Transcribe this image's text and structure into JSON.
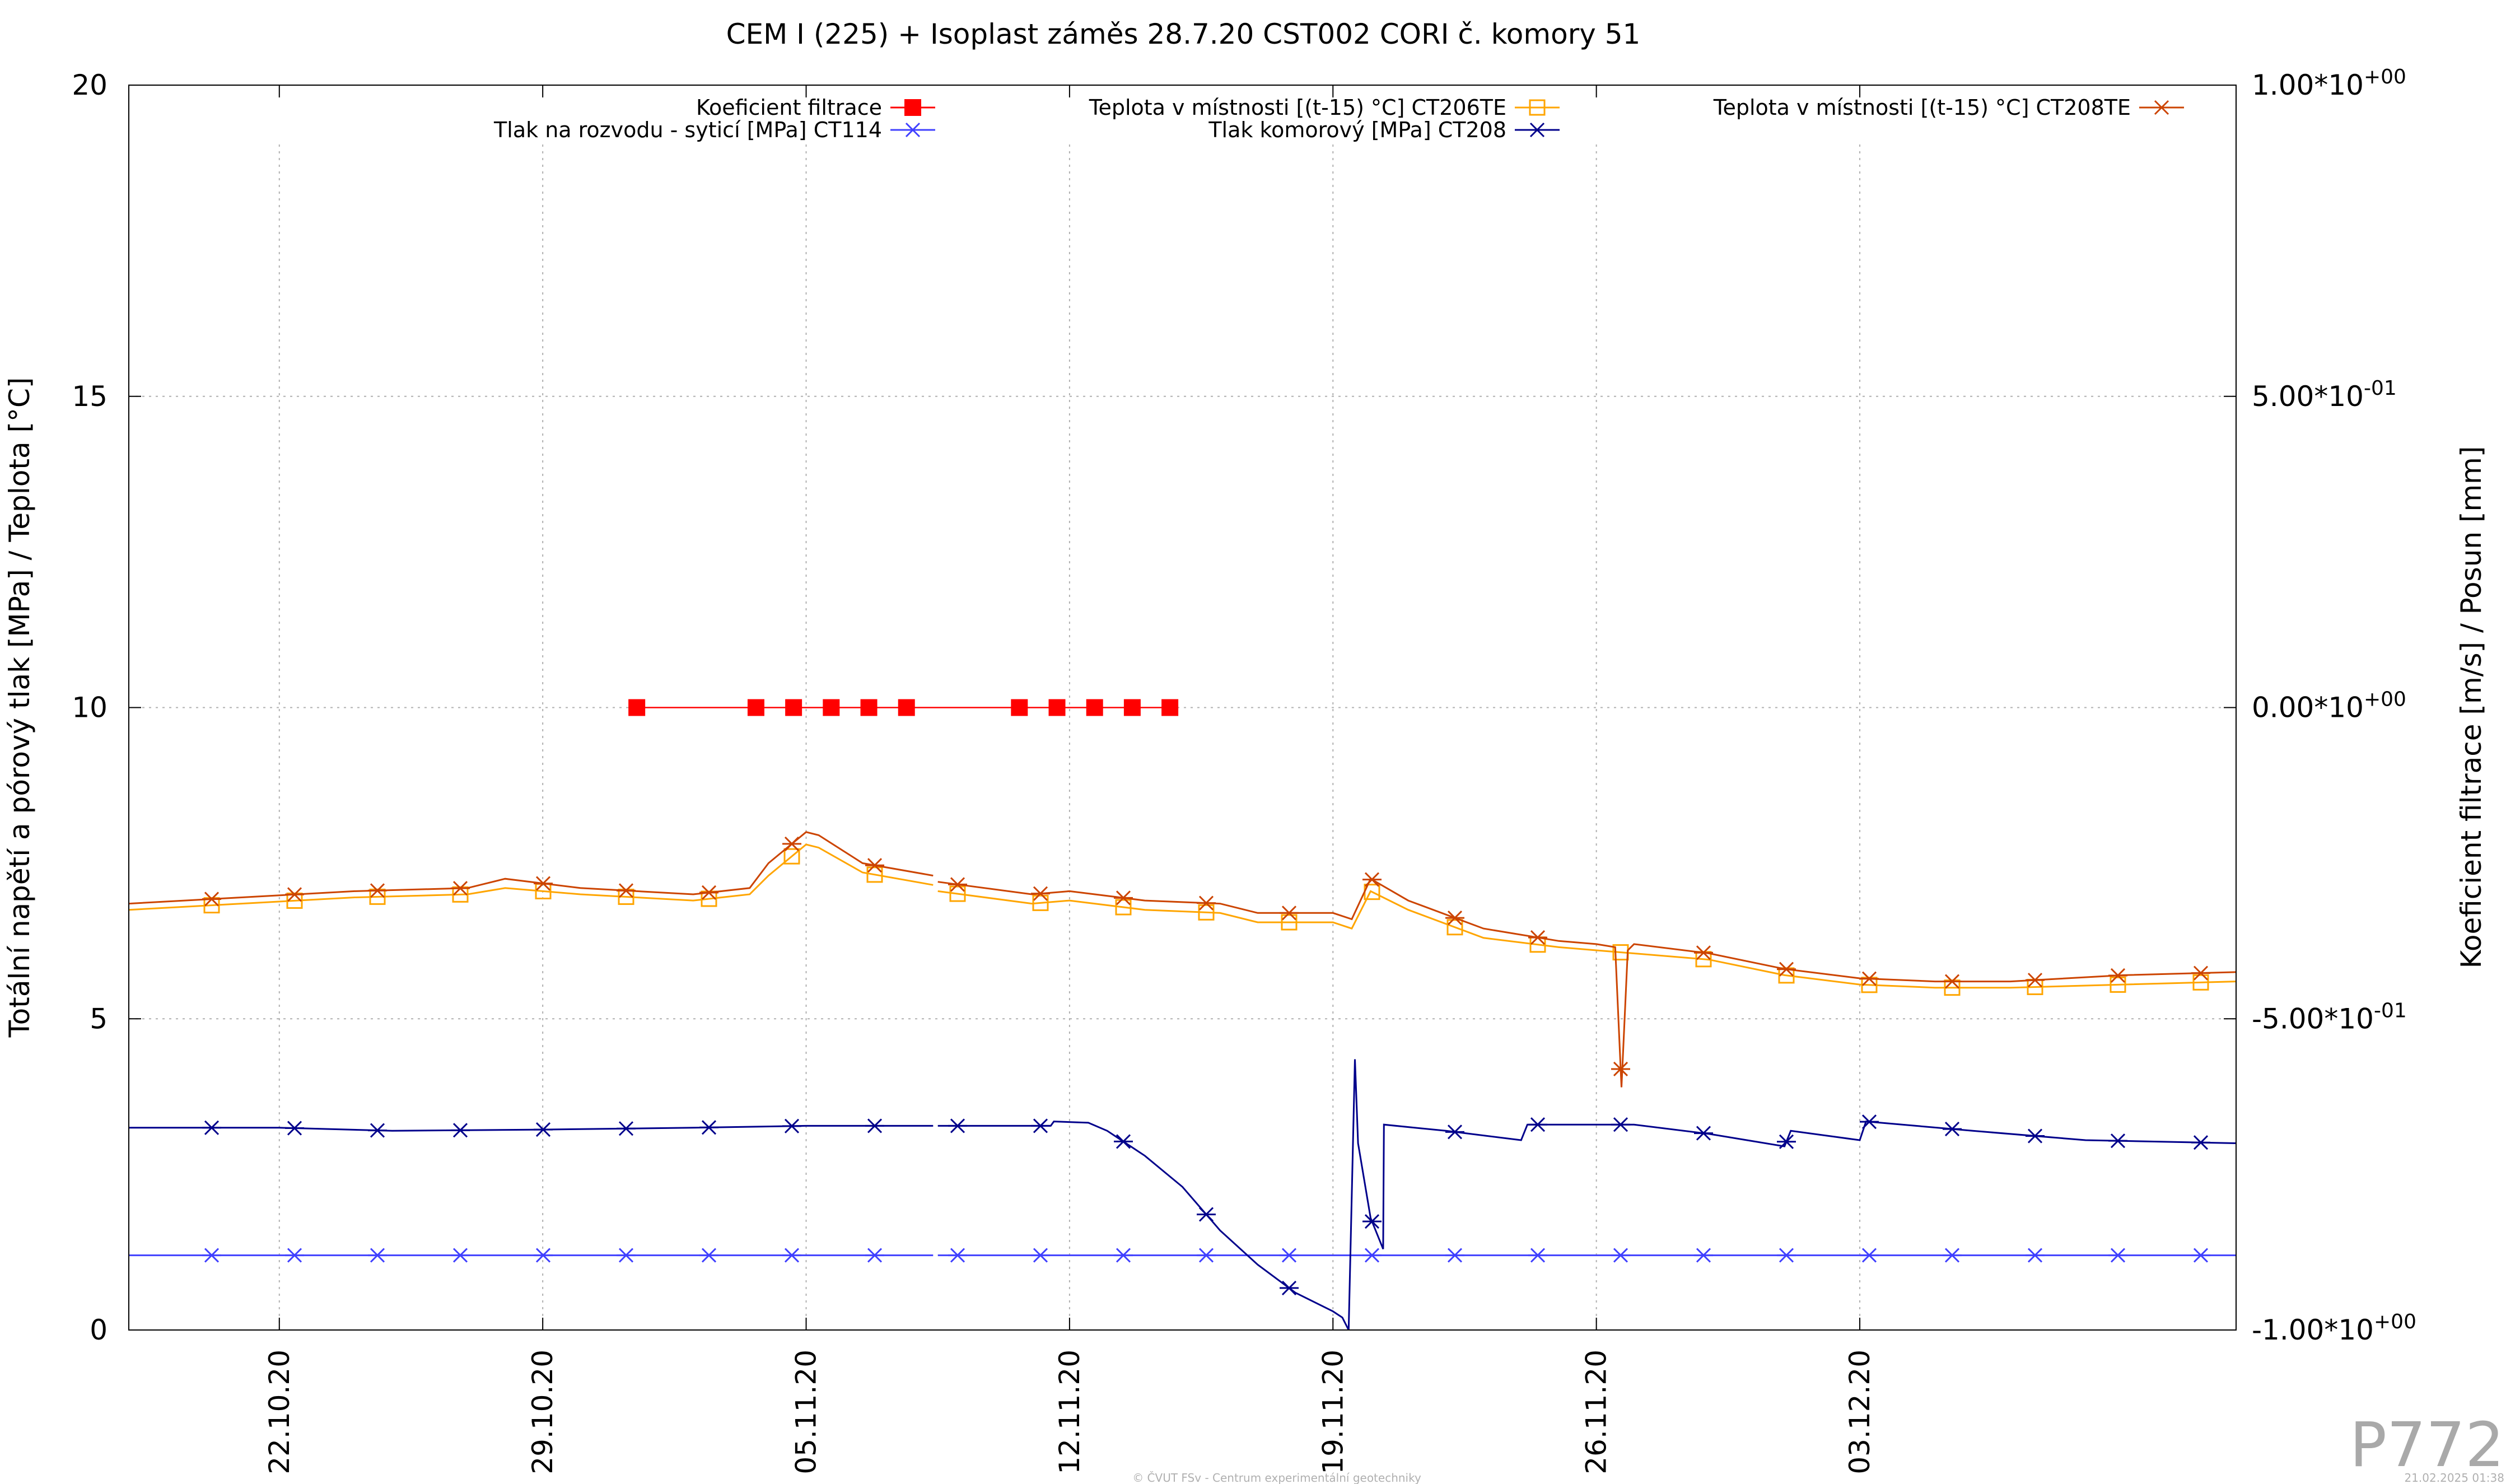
{
  "chart_data": {
    "type": "line",
    "title": "CEM I (225) + Isoplast záměs 28.7.20 CST002 CORI č. komory 51",
    "ylabel_left": "Totální napětí a pórový tlak [MPa] / Teplota [°C]",
    "ylabel_right": "Koeficient filtrace [m/s] / Posun [mm]",
    "y_left_range": [
      0,
      20
    ],
    "y_left_ticks": [
      "0",
      "5",
      "10",
      "15",
      "20"
    ],
    "y_right_range": [
      -1.0,
      1.0
    ],
    "y_right_ticks": [
      {
        "value": -1.0,
        "mant": "-1.00*10",
        "exp": "+00"
      },
      {
        "value": -0.5,
        "mant": "-5.00*10",
        "exp": "-01"
      },
      {
        "value": 0.0,
        "mant": "0.00*10",
        "exp": "+00"
      },
      {
        "value": 0.5,
        "mant": "5.00*10",
        "exp": "-01"
      },
      {
        "value": 1.0,
        "mant": "1.00*10",
        "exp": "+00"
      }
    ],
    "x_range": [
      "2020-10-18T00:00",
      "2020-12-13T00:00"
    ],
    "x_ticks": [
      {
        "date": "2020-10-22",
        "label": "22.10.20"
      },
      {
        "date": "2020-10-29",
        "label": "29.10.20"
      },
      {
        "date": "2020-11-05",
        "label": "05.11.20"
      },
      {
        "date": "2020-11-12",
        "label": "12.11.20"
      },
      {
        "date": "2020-11-19",
        "label": "19.11.20"
      },
      {
        "date": "2020-11-26",
        "label": "26.11.20"
      },
      {
        "date": "2020-12-03",
        "label": "03.12.20"
      }
    ],
    "grid": true,
    "legend_placement": "top",
    "series": [
      {
        "name": "Koeficient filtrace",
        "axis": "right",
        "color": "#ff0000",
        "marker": "filled-square",
        "points": [
          [
            "2020-10-31T12:00",
            0.0
          ],
          [
            "2020-11-03T16:00",
            0.0
          ],
          [
            "2020-11-04T16:00",
            0.0
          ],
          [
            "2020-11-05T16:00",
            0.0
          ],
          [
            "2020-11-06T16:00",
            0.0
          ],
          [
            "2020-11-07T16:00",
            0.0
          ],
          [
            "2020-11-10T16:00",
            0.0
          ],
          [
            "2020-11-11T16:00",
            0.0
          ],
          [
            "2020-11-12T16:00",
            0.0
          ],
          [
            "2020-11-13T16:00",
            0.0
          ],
          [
            "2020-11-14T16:00",
            0.0
          ]
        ]
      },
      {
        "name": "Tlak na rozvodu - syticí [MPa] CT114",
        "axis": "left",
        "color": "#4040ff",
        "marker": "star",
        "points": [
          [
            "2020-10-18T00:00",
            1.2
          ],
          [
            "2020-11-08T09:00",
            1.2
          ],
          [
            "2020-11-08T12:00",
            1.2
          ],
          [
            "2020-12-13T00:00",
            1.2
          ]
        ]
      },
      {
        "name": "Teplota v místnosti [(t-15) °C] CT206TE",
        "axis": "left",
        "color": "#ffa500",
        "marker": "open-square",
        "points": [
          [
            "2020-10-18T00:00",
            6.75
          ],
          [
            "2020-10-21T00:00",
            6.85
          ],
          [
            "2020-10-24T00:00",
            6.95
          ],
          [
            "2020-10-27T00:00",
            7.0
          ],
          [
            "2020-10-28T00:00",
            7.1
          ],
          [
            "2020-10-30T00:00",
            7.0
          ],
          [
            "2020-11-02T00:00",
            6.9
          ],
          [
            "2020-11-03T12:00",
            7.0
          ],
          [
            "2020-11-04T00:00",
            7.3
          ],
          [
            "2020-11-05T00:00",
            7.8
          ],
          [
            "2020-11-05T08:00",
            7.75
          ],
          [
            "2020-11-06T12:00",
            7.35
          ],
          [
            "2020-11-08T09:00",
            7.15
          ],
          [
            "2020-11-08T12:00",
            7.05
          ],
          [
            "2020-11-11T00:00",
            6.85
          ],
          [
            "2020-11-12T00:00",
            6.9
          ],
          [
            "2020-11-14T00:00",
            6.75
          ],
          [
            "2020-11-16T00:00",
            6.7
          ],
          [
            "2020-11-17T00:00",
            6.55
          ],
          [
            "2020-11-19T00:00",
            6.55
          ],
          [
            "2020-11-19T12:00",
            6.45
          ],
          [
            "2020-11-20T00:00",
            7.05
          ],
          [
            "2020-11-21T00:00",
            6.75
          ],
          [
            "2020-11-23T00:00",
            6.3
          ],
          [
            "2020-11-25T00:00",
            6.15
          ],
          [
            "2020-11-26T00:00",
            6.1
          ],
          [
            "2020-11-27T00:00",
            6.05
          ],
          [
            "2020-11-29T00:00",
            5.95
          ],
          [
            "2020-12-01T00:00",
            5.7
          ],
          [
            "2020-12-03T00:00",
            5.55
          ],
          [
            "2020-12-05T00:00",
            5.5
          ],
          [
            "2020-12-07T00:00",
            5.5
          ],
          [
            "2020-12-10T00:00",
            5.55
          ],
          [
            "2020-12-13T00:00",
            5.6
          ]
        ]
      },
      {
        "name": "Tlak komorový [MPa] CT208",
        "axis": "left",
        "color": "#00008b",
        "marker": "star",
        "points": [
          [
            "2020-10-18T00:00",
            3.25
          ],
          [
            "2020-10-22T00:00",
            3.25
          ],
          [
            "2020-10-25T00:00",
            3.2
          ],
          [
            "2020-10-29T00:00",
            3.22
          ],
          [
            "2020-11-02T00:00",
            3.25
          ],
          [
            "2020-11-05T00:00",
            3.28
          ],
          [
            "2020-11-08T09:00",
            3.28
          ],
          [
            "2020-11-08T12:00",
            3.28
          ],
          [
            "2020-11-11T12:00",
            3.28
          ],
          [
            "2020-11-11T14:00",
            3.35
          ],
          [
            "2020-11-12T12:00",
            3.33
          ],
          [
            "2020-11-13T00:00",
            3.2
          ],
          [
            "2020-11-14T00:00",
            2.8
          ],
          [
            "2020-11-15T00:00",
            2.3
          ],
          [
            "2020-11-16T00:00",
            1.6
          ],
          [
            "2020-11-17T00:00",
            1.05
          ],
          [
            "2020-11-18T00:00",
            0.6
          ],
          [
            "2020-11-19T00:00",
            0.3
          ],
          [
            "2020-11-19T06:00",
            0.2
          ],
          [
            "2020-11-19T10:00",
            0.0
          ],
          [
            "2020-11-19T14:00",
            4.35
          ],
          [
            "2020-11-19T16:00",
            3.0
          ],
          [
            "2020-11-20T00:00",
            1.8
          ],
          [
            "2020-11-20T08:00",
            1.3
          ],
          [
            "2020-11-20T08:30",
            3.3
          ],
          [
            "2020-11-22T00:00",
            3.2
          ],
          [
            "2020-11-24T00:00",
            3.05
          ],
          [
            "2020-11-24T04:00",
            3.3
          ],
          [
            "2020-11-27T00:00",
            3.3
          ],
          [
            "2020-11-29T00:00",
            3.15
          ],
          [
            "2020-11-30T00:00",
            3.05
          ],
          [
            "2020-12-01T00:00",
            2.95
          ],
          [
            "2020-12-01T04:00",
            3.2
          ],
          [
            "2020-12-03T00:00",
            3.05
          ],
          [
            "2020-12-03T04:00",
            3.35
          ],
          [
            "2020-12-06T00:00",
            3.2
          ],
          [
            "2020-12-09T00:00",
            3.05
          ],
          [
            "2020-12-13T00:00",
            3.0
          ]
        ]
      },
      {
        "name": "Teplota v místnosti [(t-15) °C] CT208TE",
        "axis": "left",
        "color": "#cc4400",
        "marker": "star",
        "points": [
          [
            "2020-10-18T00:00",
            6.85
          ],
          [
            "2020-10-21T00:00",
            6.95
          ],
          [
            "2020-10-24T00:00",
            7.05
          ],
          [
            "2020-10-27T00:00",
            7.1
          ],
          [
            "2020-10-28T00:00",
            7.25
          ],
          [
            "2020-10-30T00:00",
            7.1
          ],
          [
            "2020-11-02T00:00",
            7.0
          ],
          [
            "2020-11-03T12:00",
            7.1
          ],
          [
            "2020-11-04T00:00",
            7.5
          ],
          [
            "2020-11-05T00:00",
            8.0
          ],
          [
            "2020-11-05T08:00",
            7.95
          ],
          [
            "2020-11-06T12:00",
            7.5
          ],
          [
            "2020-11-08T09:00",
            7.3
          ],
          [
            "2020-11-08T12:00",
            7.2
          ],
          [
            "2020-11-11T00:00",
            7.0
          ],
          [
            "2020-11-12T00:00",
            7.05
          ],
          [
            "2020-11-14T00:00",
            6.9
          ],
          [
            "2020-11-16T00:00",
            6.85
          ],
          [
            "2020-11-17T00:00",
            6.7
          ],
          [
            "2020-11-19T00:00",
            6.7
          ],
          [
            "2020-11-19T12:00",
            6.6
          ],
          [
            "2020-11-20T00:00",
            7.25
          ],
          [
            "2020-11-21T00:00",
            6.9
          ],
          [
            "2020-11-23T00:00",
            6.45
          ],
          [
            "2020-11-25T00:00",
            6.25
          ],
          [
            "2020-11-26T00:00",
            6.2
          ],
          [
            "2020-11-26T12:00",
            6.15
          ],
          [
            "2020-11-26T16:00",
            3.9
          ],
          [
            "2020-11-26T20:00",
            6.1
          ],
          [
            "2020-11-27T00:00",
            6.2
          ],
          [
            "2020-11-29T00:00",
            6.05
          ],
          [
            "2020-12-01T00:00",
            5.8
          ],
          [
            "2020-12-03T00:00",
            5.65
          ],
          [
            "2020-12-05T00:00",
            5.6
          ],
          [
            "2020-12-07T00:00",
            5.6
          ],
          [
            "2020-12-10T00:00",
            5.7
          ],
          [
            "2020-12-13T00:00",
            5.75
          ]
        ]
      }
    ]
  },
  "watermark": "P772",
  "footer_center": "© ČVUT FSv - Centrum experimentální geotechniky",
  "footer_right": "21.02.2025 01:38"
}
